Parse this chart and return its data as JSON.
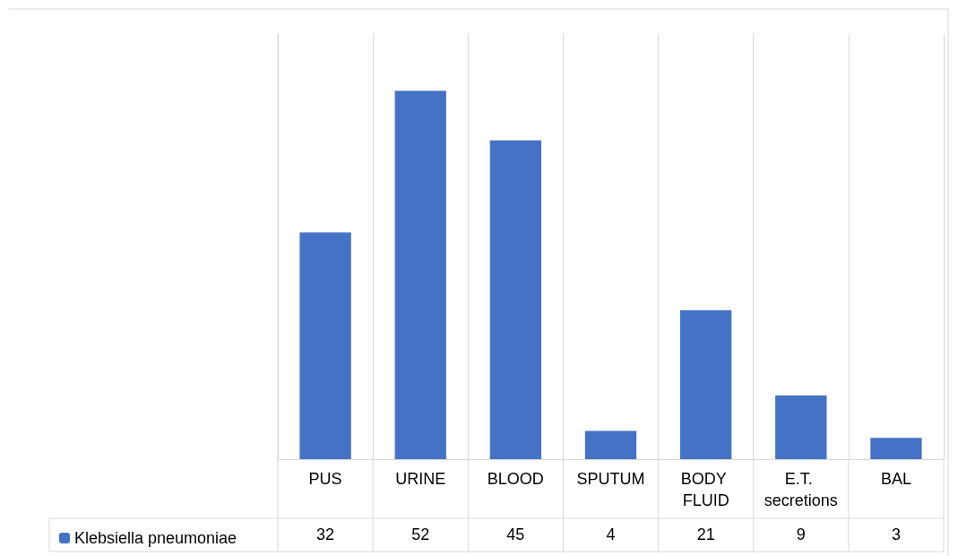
{
  "chart_data": {
    "type": "bar",
    "categories": [
      "PUS",
      "URINE",
      "BLOOD",
      "SPUTUM",
      "BODY FLUID",
      "E.T. secretions",
      "BAL"
    ],
    "series": [
      {
        "name": "Klebsiella pneumoniae",
        "color": "#4472c4",
        "values": [
          32,
          52,
          45,
          4,
          21,
          9,
          3
        ]
      }
    ],
    "data_labels": true,
    "grid": "x",
    "legend": "bottom"
  }
}
